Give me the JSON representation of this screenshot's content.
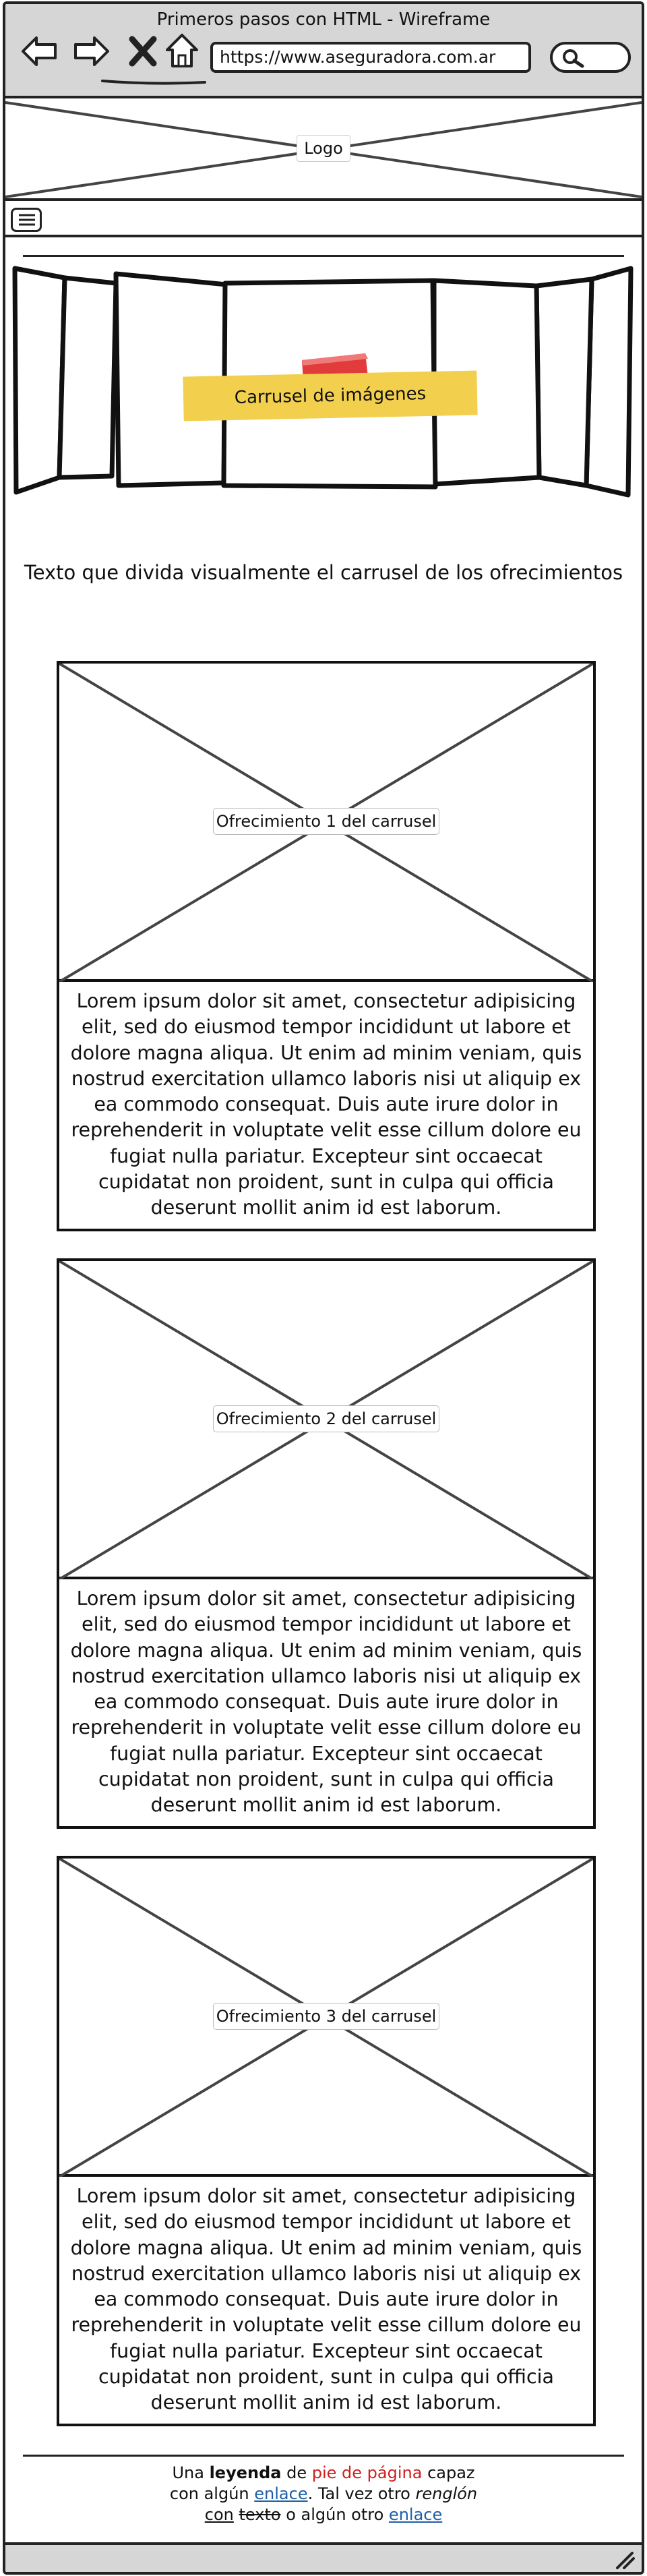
{
  "window": {
    "title": "Primeros pasos con HTML - Wireframe"
  },
  "toolbar": {
    "icons": [
      "back-arrow-icon",
      "forward-arrow-icon",
      "close-x-icon",
      "home-icon",
      "search-icon"
    ],
    "url": "https://www.aseguradora.com.ar"
  },
  "header": {
    "logo": "Logo"
  },
  "menu": {
    "icon": "hamburger-menu-icon"
  },
  "carousel": {
    "label": "Carrusel de imágenes",
    "colors": {
      "note": "#f3cf4e",
      "pin": "#e23b3b"
    }
  },
  "intro": {
    "text": "Texto que divida visualmente el carrusel de los ofrecimientos"
  },
  "offerings": [
    {
      "label": "Ofrecimiento 1 del carrusel",
      "text": "Lorem ipsum dolor sit amet, consectetur adipisicing elit, sed do eiusmod tempor incididunt ut labore et dolore magna aliqua. Ut enim ad minim veniam, quis nostrud exercitation ullamco laboris nisi ut aliquip ex ea commodo consequat. Duis aute irure dolor in reprehenderit in voluptate velit esse cillum dolore eu fugiat nulla pariatur. Excepteur sint occaecat cupidatat non proident, sunt in culpa qui officia deserunt mollit anim id est laborum."
    },
    {
      "label": "Ofrecimiento 2 del carrusel",
      "text": "Lorem ipsum dolor sit amet, consectetur adipisicing elit, sed do eiusmod tempor incididunt ut labore et dolore magna aliqua. Ut enim ad minim veniam, quis nostrud exercitation ullamco laboris nisi ut aliquip ex ea commodo consequat. Duis aute irure dolor in reprehenderit in voluptate velit esse cillum dolore eu fugiat nulla pariatur. Excepteur sint occaecat cupidatat non proident, sunt in culpa qui officia deserunt mollit anim id est laborum."
    },
    {
      "label": "Ofrecimiento 3 del carrusel",
      "text": "Lorem ipsum dolor sit amet, consectetur adipisicing elit, sed do eiusmod tempor incididunt ut labore et dolore magna aliqua. Ut enim ad minim veniam, quis nostrud exercitation ullamco laboris nisi ut aliquip ex ea commodo consequat. Duis aute irure dolor in reprehenderit in voluptate velit esse cillum dolore eu fugiat nulla pariatur. Excepteur sint occaecat cupidatat non proident, sunt in culpa qui officia deserunt mollit anim id est laborum."
    }
  ],
  "footer": {
    "w1": "Una",
    "w2": "leyenda",
    "w3": "de",
    "w4": "pie de página",
    "w5": "capaz",
    "w6": "con algún",
    "link1": "enlace",
    "w7": ". Tal vez otro",
    "w8": "renglón",
    "w9": "con",
    "w10": "texto",
    "w11": "o algún otro",
    "link2": "enlace",
    "colors": {
      "link": "#1f5fa8",
      "highlight": "#d01f1f"
    }
  },
  "status_bar": {
    "icon": "resize-grip-icon"
  }
}
